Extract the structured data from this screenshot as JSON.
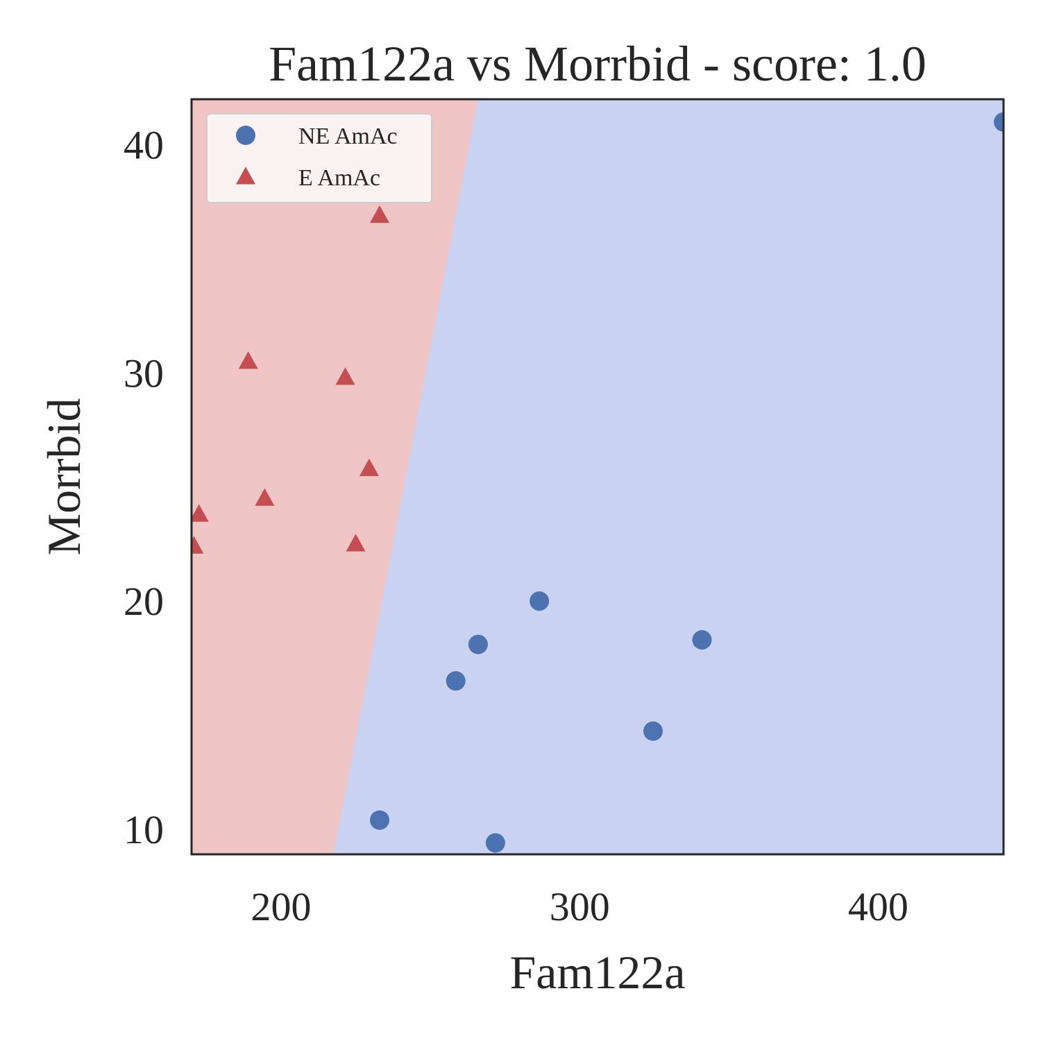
{
  "chart_data": {
    "type": "scatter",
    "title": "Fam122a vs Morrbid - score: 1.0",
    "xlabel": "Fam122a",
    "ylabel": "Morrbid",
    "xlim": [
      170,
      442
    ],
    "ylim": [
      8.9,
      42.0
    ],
    "xticks": [
      200,
      300,
      400
    ],
    "yticks": [
      10,
      20,
      30,
      40
    ],
    "grid": false,
    "legend_position": "top-left",
    "decision_boundary": {
      "points": [
        [
          217.5,
          8.9
        ],
        [
          265.9,
          42.0
        ]
      ],
      "left_region_class": "E AmAc",
      "right_region_class": "NE AmAc",
      "left_region_color": "#efc5c5",
      "right_region_color": "#c9d2f1"
    },
    "series": [
      {
        "name": "NE AmAc",
        "marker": "circle",
        "color": "#4c72b0",
        "points": [
          [
            442.0,
            41.0
          ],
          [
            286.5,
            20.0
          ],
          [
            266.0,
            18.1
          ],
          [
            341.0,
            18.3
          ],
          [
            258.5,
            16.5
          ],
          [
            324.6,
            14.3
          ],
          [
            233.0,
            10.4
          ],
          [
            271.8,
            9.4
          ]
        ]
      },
      {
        "name": "E AmAc",
        "marker": "triangle",
        "color": "#c44e52",
        "points": [
          [
            233.0,
            36.9
          ],
          [
            189.0,
            30.5
          ],
          [
            221.5,
            29.8
          ],
          [
            229.5,
            25.8
          ],
          [
            194.5,
            24.5
          ],
          [
            172.5,
            23.8
          ],
          [
            170.8,
            22.4
          ],
          [
            225.0,
            22.5
          ]
        ]
      }
    ]
  }
}
